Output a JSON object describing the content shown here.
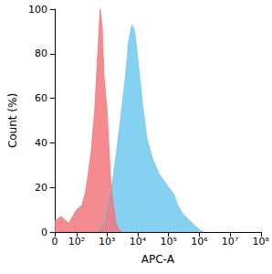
{
  "chart_data": {
    "type": "area",
    "log": "x",
    "grid": false,
    "x_label": "APC-A",
    "y_label": "Count (%)",
    "xlim": [
      0,
      100000000
    ],
    "xticks": [
      0,
      {
        "value": 100,
        "label": "10²"
      },
      {
        "value": 1000,
        "label": "10³"
      },
      {
        "value": 10000,
        "label": "10⁴"
      },
      {
        "value": 100000,
        "label": "10⁵"
      },
      {
        "value": 1000000,
        "label": "10⁶"
      },
      {
        "value": 10000000,
        "label": "10⁷"
      },
      {
        "value": 100000000,
        "label": "10⁸"
      }
    ],
    "ylim": [
      0,
      100
    ],
    "yticks": [
      0,
      20,
      40,
      60,
      80,
      100
    ],
    "series": [
      {
        "color": "#6fc9ef",
        "x": [
          500,
          800,
          1000,
          1500,
          2000,
          3000,
          4000,
          5000,
          6500,
          8000,
          10000,
          15000,
          20000,
          30000,
          50000,
          80000,
          100000,
          150000,
          200000,
          300000,
          500000,
          700000,
          1000000,
          1300000
        ],
        "values": [
          0,
          5,
          12,
          22,
          35,
          55,
          70,
          85,
          93,
          90,
          78,
          55,
          42,
          33,
          26,
          22,
          20,
          17,
          12,
          8,
          5,
          3,
          1,
          0
        ]
      },
      {
        "color": "#f2787b",
        "x": [
          0,
          20,
          50,
          80,
          100,
          150,
          200,
          300,
          400,
          500,
          600,
          700,
          800,
          1000,
          1300,
          1600,
          2000,
          2500,
          3000
        ],
        "values": [
          5,
          7,
          4,
          8,
          10,
          12,
          18,
          35,
          55,
          80,
          100,
          92,
          70,
          55,
          25,
          12,
          4,
          1,
          0
        ]
      }
    ]
  }
}
